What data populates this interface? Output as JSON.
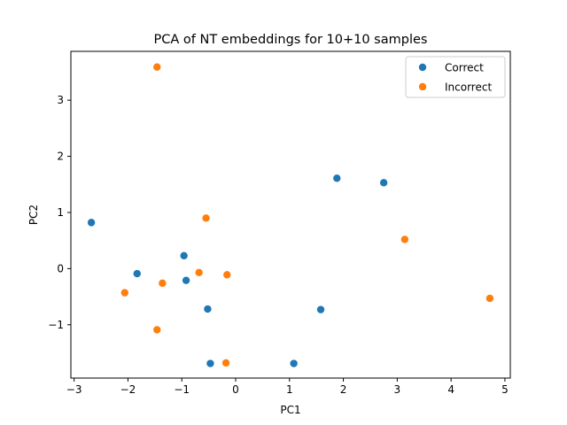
{
  "chart_data": {
    "type": "scatter",
    "title": "PCA of NT embeddings for 10+10 samples",
    "xlabel": "PC1",
    "ylabel": "PC2",
    "xlim": [
      -3.06,
      5.1
    ],
    "ylim": [
      -1.95,
      3.87
    ],
    "xticks": [
      -3,
      -2,
      -1,
      0,
      1,
      2,
      3,
      4,
      5
    ],
    "yticks": [
      -1,
      0,
      1,
      2,
      3
    ],
    "grid": false,
    "legend_position": "top-right",
    "series": [
      {
        "name": "Correct",
        "color": "#1f77b4",
        "points": [
          [
            -2.68,
            0.82
          ],
          [
            -1.83,
            -0.09
          ],
          [
            -0.96,
            0.23
          ],
          [
            -0.92,
            -0.21
          ],
          [
            -0.52,
            -0.72
          ],
          [
            -0.47,
            -1.69
          ],
          [
            1.08,
            -1.69
          ],
          [
            1.58,
            -0.73
          ],
          [
            1.88,
            1.61
          ],
          [
            2.75,
            1.53
          ]
        ]
      },
      {
        "name": "Incorrect",
        "color": "#ff7f0e",
        "points": [
          [
            -1.46,
            3.59
          ],
          [
            -2.06,
            -0.43
          ],
          [
            -1.36,
            -0.26
          ],
          [
            -1.46,
            -1.09
          ],
          [
            -0.55,
            0.9
          ],
          [
            -0.68,
            -0.07
          ],
          [
            -0.16,
            -0.11
          ],
          [
            -0.18,
            -1.68
          ],
          [
            3.14,
            0.52
          ],
          [
            4.72,
            -0.53
          ]
        ]
      }
    ]
  }
}
